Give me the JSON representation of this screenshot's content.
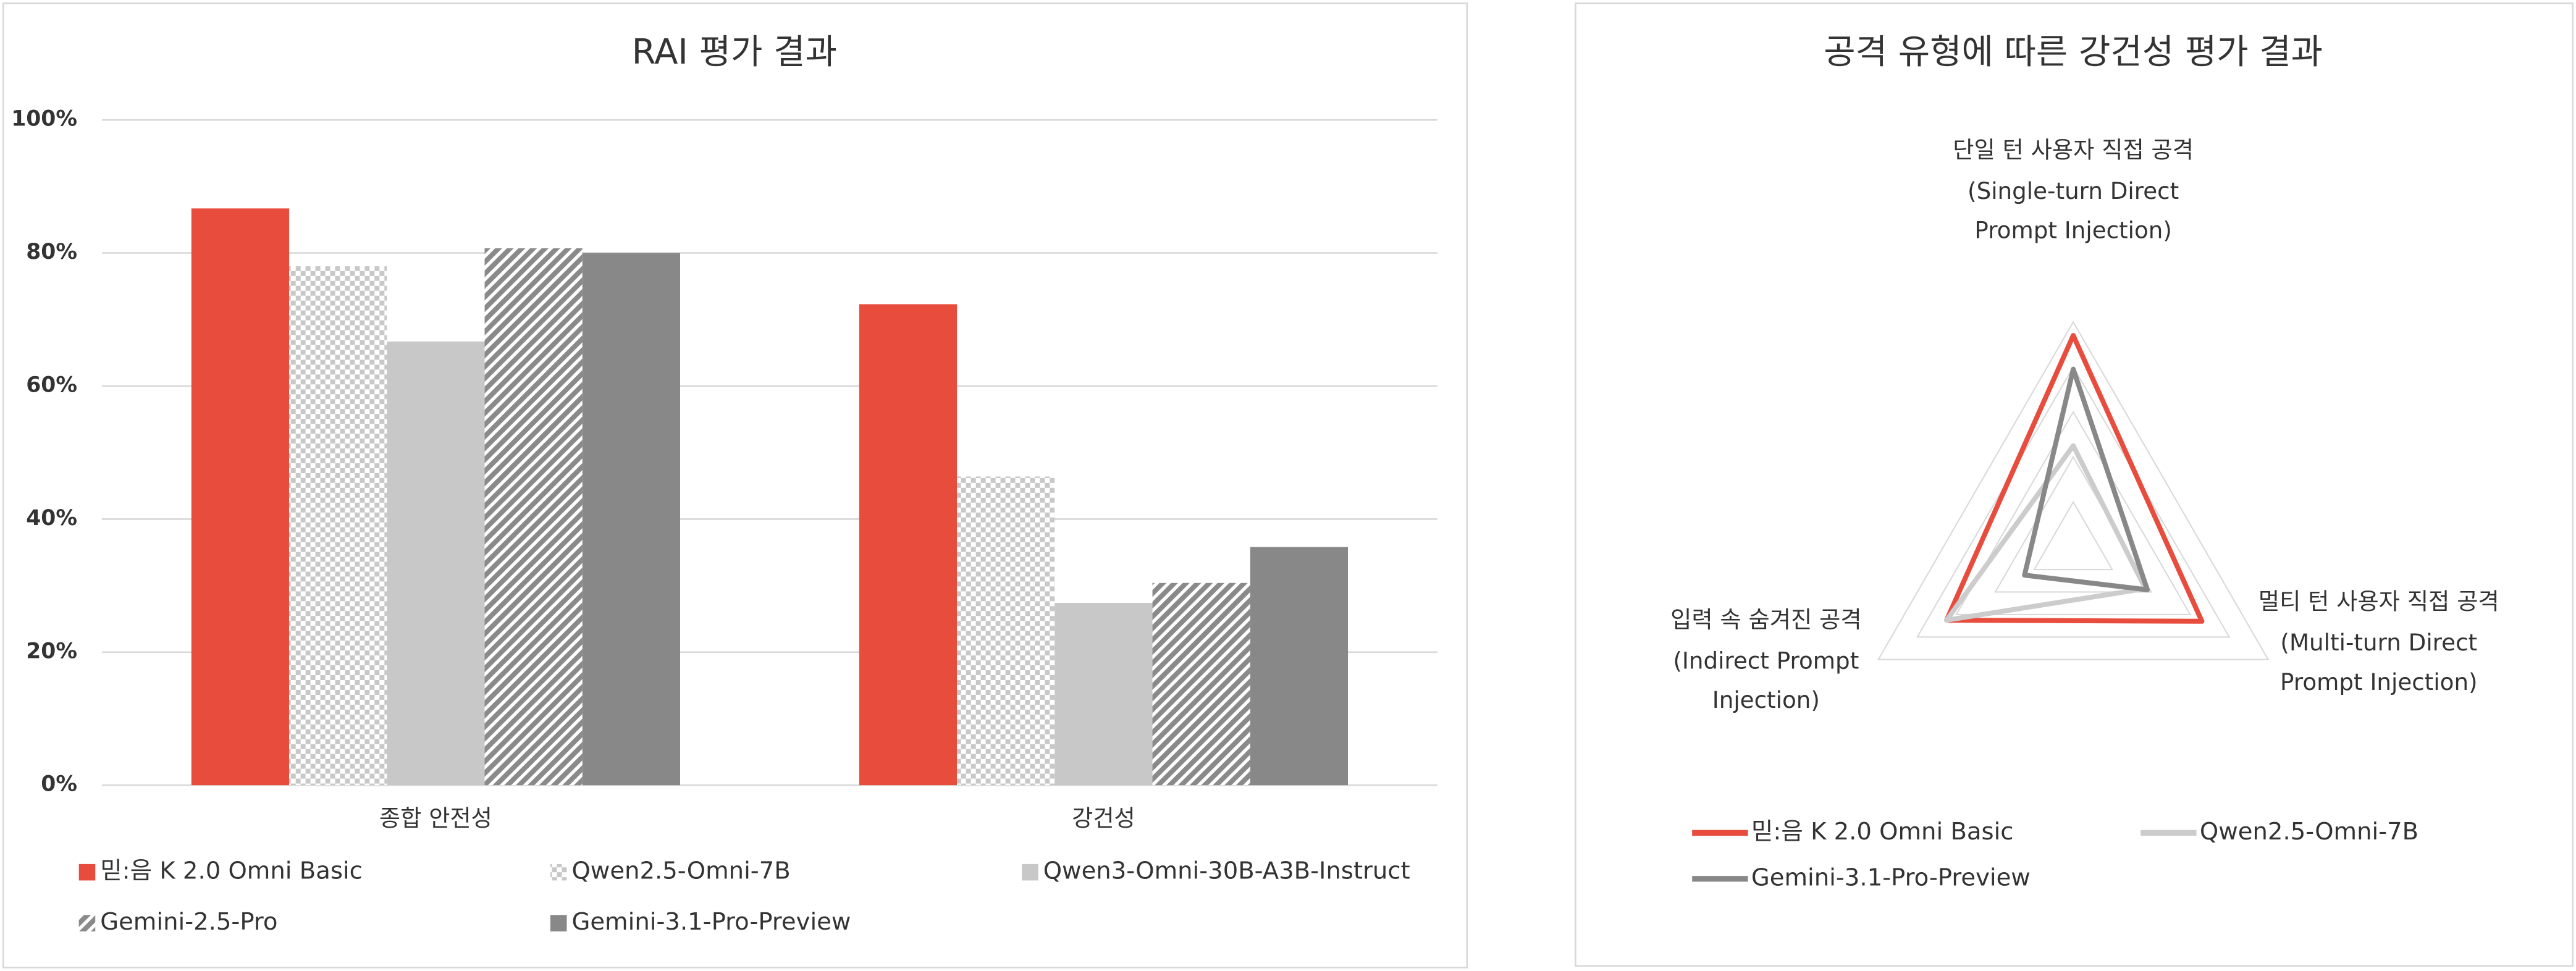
{
  "chart_data": [
    {
      "type": "bar",
      "title": "RAI 평가 결과",
      "categories": [
        "종합 안전성",
        "강건성"
      ],
      "series": [
        {
          "name": "믿:음 K 2.0 Omni Basic",
          "color": "#e84c3d",
          "pattern": "solid",
          "values": [
            86.7,
            72.3
          ]
        },
        {
          "name": "Qwen2.5-Omni-7B",
          "color": "#c8c8c8",
          "pattern": "checker",
          "values": [
            78.0,
            46.4
          ]
        },
        {
          "name": "Qwen3-Omni-30B-A3B-Instruct",
          "color": "#c8c8c8",
          "pattern": "solid",
          "values": [
            66.7,
            27.4
          ]
        },
        {
          "name": "Gemini-2.5-Pro",
          "color": "#8a8a8a",
          "pattern": "diagonal",
          "values": [
            80.7,
            30.4
          ]
        },
        {
          "name": "Gemini-3.1-Pro-Preview",
          "color": "#888888",
          "pattern": "solid",
          "values": [
            80.0,
            35.8
          ]
        }
      ],
      "ylim": [
        0,
        100
      ],
      "yticks": [
        {
          "value": 0,
          "label": "0%"
        },
        {
          "value": 20,
          "label": "20%"
        },
        {
          "value": 40,
          "label": "40%"
        },
        {
          "value": 60,
          "label": "60%"
        },
        {
          "value": 80,
          "label": "80%"
        },
        {
          "value": 100,
          "label": "100%"
        }
      ],
      "grid": true
    },
    {
      "type": "radar",
      "title": "공격 유형에 따른 강건성 평가 결과",
      "categories": [
        "단일 턴 사용자 직접 공격 (Single-turn Direct Prompt Injection)",
        "멀티 턴 사용자 직접 공격 (Multi-turn Direct Prompt Injection)",
        "입력 속 숨겨진 공격 (Indirect Prompt Injection)"
      ],
      "series": [
        {
          "name": "믿:음 K 2.0 Omni Basic",
          "color": "#e84c3d",
          "values": [
            0.94,
            0.66,
            0.65
          ]
        },
        {
          "name": "Qwen2.5-Omni-7B",
          "color": "#cccccc",
          "values": [
            0.45,
            0.37,
            0.65
          ]
        },
        {
          "name": "Gemini-3.1-Pro-Preview",
          "color": "#888888",
          "values": [
            0.79,
            0.38,
            0.25
          ]
        }
      ],
      "rlim": [
        0,
        1
      ],
      "rticks": [
        0.2,
        0.4,
        0.6,
        0.8,
        1
      ],
      "grid": true
    }
  ]
}
